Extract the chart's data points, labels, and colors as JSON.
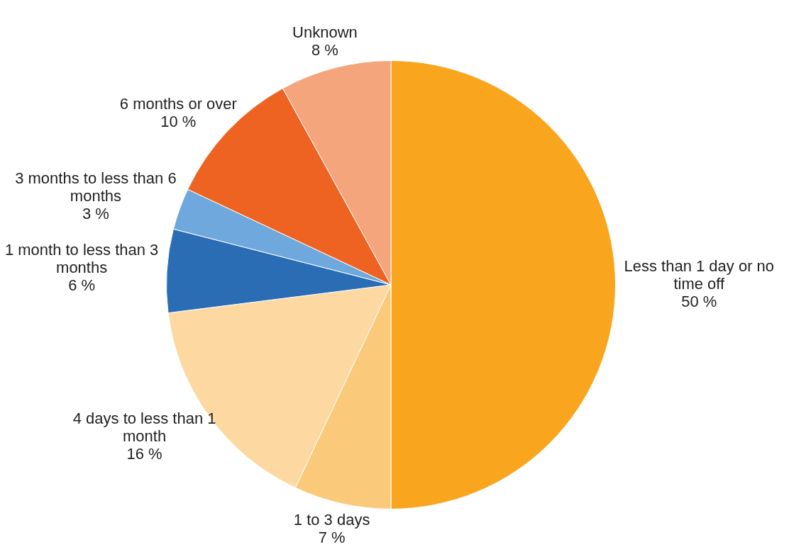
{
  "chart_data": {
    "type": "pie",
    "categories": [
      "Less than 1 day or no time off",
      "1 to 3 days",
      "4 days to less than 1 month",
      "1 month to less than 3 months",
      "3 months to less than 6 months",
      "6 months or over",
      "Unknown"
    ],
    "values": [
      50,
      7,
      16,
      6,
      3,
      10,
      8
    ],
    "colors": [
      "#f9a51d",
      "#fbc97a",
      "#fdd9a1",
      "#2a6db5",
      "#6fa8dc",
      "#ef6322",
      "#f5a57c"
    ],
    "value_labels": [
      "50 %",
      "7 %",
      "16 %",
      "6 %",
      "3 %",
      "10 %",
      "8 %"
    ],
    "legend": false
  }
}
